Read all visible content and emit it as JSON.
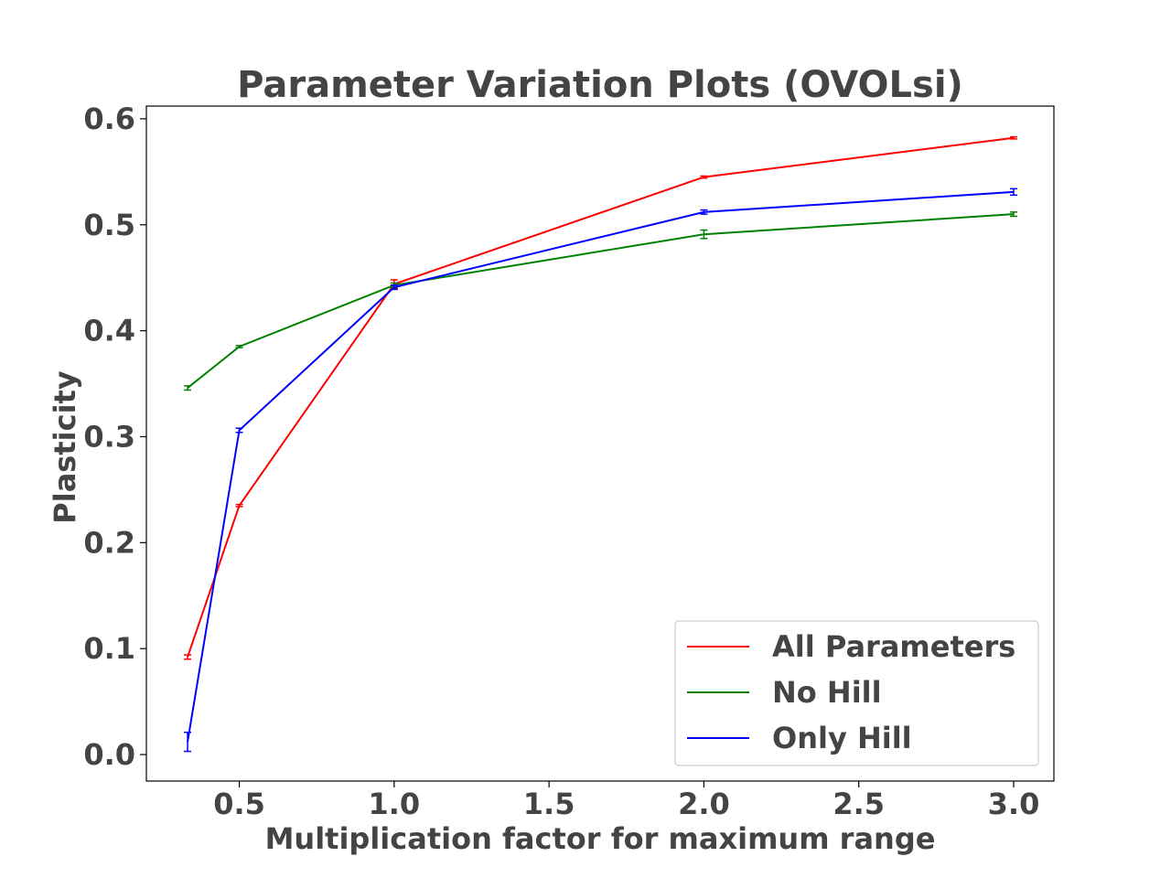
{
  "chart_data": {
    "type": "line",
    "title": "Parameter Variation Plots (OVOLsi)",
    "xlabel": "Multiplication factor for maximum range",
    "ylabel": "Plasticity",
    "x": [
      0.333,
      0.5,
      1.0,
      2.0,
      3.0
    ],
    "xlim": [
      0.2,
      3.13
    ],
    "ylim": [
      -0.025,
      0.612
    ],
    "xticks": [
      0.5,
      1.0,
      1.5,
      2.0,
      2.5,
      3.0
    ],
    "xtick_labels": [
      "0.5",
      "1.0",
      "1.5",
      "2.0",
      "2.5",
      "3.0"
    ],
    "yticks": [
      0.0,
      0.1,
      0.2,
      0.3,
      0.4,
      0.5,
      0.6
    ],
    "ytick_labels": [
      "0.0",
      "0.1",
      "0.2",
      "0.3",
      "0.4",
      "0.5",
      "0.6"
    ],
    "grid": false,
    "legend_position": "lower-right",
    "series": [
      {
        "name": "All Parameters",
        "color": "#ff0000",
        "values": [
          0.092,
          0.235,
          0.444,
          0.545,
          0.582
        ],
        "errors": [
          0.002,
          0.001,
          0.004,
          0.001,
          0.001
        ]
      },
      {
        "name": "No Hill",
        "color": "#008000",
        "values": [
          0.346,
          0.385,
          0.443,
          0.491,
          0.51
        ],
        "errors": [
          0.002,
          0.001,
          0.002,
          0.004,
          0.002
        ]
      },
      {
        "name": "Only Hill",
        "color": "#0000ff",
        "values": [
          0.012,
          0.306,
          0.441,
          0.512,
          0.531
        ],
        "errors": [
          0.009,
          0.002,
          0.002,
          0.002,
          0.003
        ]
      }
    ]
  }
}
